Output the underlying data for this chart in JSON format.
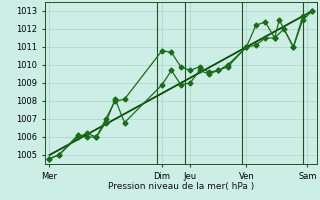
{
  "xlabel": "Pression niveau de la mer( hPa )",
  "bg_color": "#cceee4",
  "grid_color": "#aad4ca",
  "line_color": "#1a6b1a",
  "dark_line_color": "#0a4a0a",
  "ylim": [
    1004.5,
    1013.5
  ],
  "yticks": [
    1005,
    1006,
    1007,
    1008,
    1009,
    1010,
    1011,
    1012,
    1013
  ],
  "xlim": [
    0,
    29
  ],
  "day_labels": [
    "Mer",
    "Dim",
    "Jeu",
    "Ven",
    "Sam"
  ],
  "day_positions": [
    0.5,
    12.5,
    15.5,
    21.5,
    28.0
  ],
  "vline_positions": [
    12,
    15,
    21,
    27.5
  ],
  "series1_x": [
    0.5,
    1.5,
    3.5,
    4.5,
    5.5,
    6.5,
    7.5,
    8.5,
    12.5,
    13.5,
    14.5,
    15.5,
    16.5,
    17.5,
    18.5,
    19.5,
    21.5,
    22.5,
    23.5,
    24.5,
    25.0,
    26.5,
    27.5,
    28.5
  ],
  "series1_y": [
    1004.8,
    1005.0,
    1006.0,
    1006.2,
    1006.0,
    1007.0,
    1008.0,
    1008.1,
    1010.8,
    1010.7,
    1009.9,
    1009.7,
    1009.9,
    1009.6,
    1009.7,
    1010.0,
    1011.0,
    1012.2,
    1012.4,
    1011.5,
    1012.5,
    1011.0,
    1012.7,
    1013.0
  ],
  "series2_x": [
    0.5,
    1.5,
    3.5,
    4.5,
    5.5,
    6.5,
    7.5,
    8.5,
    12.5,
    13.5,
    14.5,
    15.5,
    16.5,
    17.5,
    18.5,
    19.5,
    21.5,
    22.5,
    23.5,
    24.5,
    25.5,
    26.5,
    27.5,
    28.5
  ],
  "series2_y": [
    1004.8,
    1005.0,
    1006.1,
    1006.0,
    1006.0,
    1006.8,
    1008.1,
    1006.8,
    1008.9,
    1009.7,
    1008.9,
    1009.0,
    1009.7,
    1009.5,
    1009.7,
    1009.9,
    1011.0,
    1011.1,
    1011.5,
    1011.5,
    1012.0,
    1011.0,
    1012.5,
    1013.0
  ],
  "trend_x": [
    0.5,
    28.5
  ],
  "trend_y": [
    1005.0,
    1013.0
  ],
  "marker_size": 2.5,
  "linewidth": 0.9
}
